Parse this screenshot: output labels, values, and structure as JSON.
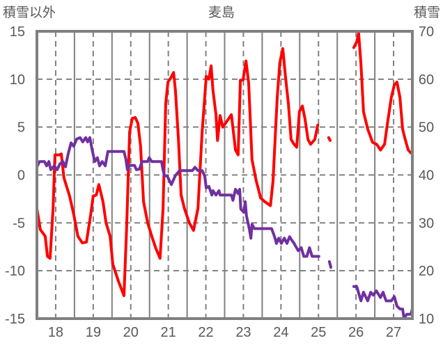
{
  "chart_data": {
    "type": "line",
    "title": "麦島",
    "ylabel_left": "積雪以外",
    "ylabel_right": "積雪",
    "xlabel": "",
    "xlim": [
      17.5,
      27.5
    ],
    "ylim_left": [
      -15,
      15
    ],
    "ylim_right": [
      10,
      70
    ],
    "x_ticks": [
      18,
      19,
      20,
      21,
      22,
      23,
      24,
      25,
      26,
      27
    ],
    "y_left_ticks": [
      15,
      10,
      5,
      0,
      -5,
      -10,
      -15
    ],
    "y_right_ticks": [
      70,
      60,
      50,
      40,
      30,
      20,
      10
    ],
    "grid": true,
    "colors": {
      "red_series": "#ff0000",
      "purple_series": "#7030a0",
      "grid": "#808080",
      "frame": "#808080"
    },
    "series": [
      {
        "name": "積雪以外",
        "axis": "left",
        "color": "#ff0000",
        "points": [
          [
            17.5,
            -3.5
          ],
          [
            17.59,
            -5.7
          ],
          [
            17.72,
            -6.4
          ],
          [
            17.78,
            -8.5
          ],
          [
            17.85,
            -8.7
          ],
          [
            17.93,
            -3.5
          ],
          [
            17.98,
            2.1
          ],
          [
            18.11,
            2.1
          ],
          [
            18.15,
            2.2
          ],
          [
            18.22,
            -0.3
          ],
          [
            18.37,
            -2.2
          ],
          [
            18.48,
            -4.1
          ],
          [
            18.59,
            -6.4
          ],
          [
            18.71,
            -7.1
          ],
          [
            18.82,
            -7.0
          ],
          [
            18.93,
            -4.2
          ],
          [
            19.0,
            -2.2
          ],
          [
            19.08,
            -2.1
          ],
          [
            19.15,
            -1.0
          ],
          [
            19.26,
            -2.8
          ],
          [
            19.34,
            -5.0
          ],
          [
            19.45,
            -6.4
          ],
          [
            19.52,
            -9.3
          ],
          [
            19.67,
            -11.1
          ],
          [
            19.82,
            -12.6
          ],
          [
            19.89,
            -5.5
          ],
          [
            19.97,
            4.5
          ],
          [
            20.04,
            5.9
          ],
          [
            20.12,
            6.0
          ],
          [
            20.19,
            5.4
          ],
          [
            20.26,
            3.0
          ],
          [
            20.34,
            -2.8
          ],
          [
            20.45,
            -5.0
          ],
          [
            20.56,
            -6.4
          ],
          [
            20.67,
            -7.7
          ],
          [
            20.78,
            -8.7
          ],
          [
            20.86,
            -3.5
          ],
          [
            20.93,
            7.4
          ],
          [
            20.99,
            9.7
          ],
          [
            21.06,
            10.1
          ],
          [
            21.14,
            10.7
          ],
          [
            21.19,
            8.8
          ],
          [
            21.27,
            3.7
          ],
          [
            21.34,
            -2.1
          ],
          [
            21.43,
            -3.5
          ],
          [
            21.56,
            -5.0
          ],
          [
            21.67,
            -5.8
          ],
          [
            21.79,
            -3.5
          ],
          [
            21.9,
            4.5
          ],
          [
            21.97,
            8.1
          ],
          [
            22.01,
            10.3
          ],
          [
            22.08,
            10.0
          ],
          [
            22.14,
            11.4
          ],
          [
            22.19,
            8.8
          ],
          [
            22.27,
            6.3
          ],
          [
            22.31,
            3.6
          ],
          [
            22.38,
            6.2
          ],
          [
            22.45,
            5.0
          ],
          [
            22.56,
            5.6
          ],
          [
            22.68,
            6.3
          ],
          [
            22.79,
            2.6
          ],
          [
            22.86,
            2.1
          ],
          [
            22.92,
            9.9
          ],
          [
            22.99,
            9.9
          ],
          [
            23.07,
            11.9
          ],
          [
            23.14,
            9.6
          ],
          [
            23.23,
            1.6
          ],
          [
            23.34,
            -0.6
          ],
          [
            23.46,
            -2.4
          ],
          [
            23.57,
            -2.8
          ],
          [
            23.72,
            -3.2
          ],
          [
            23.79,
            -0.6
          ],
          [
            23.9,
            8.1
          ],
          [
            23.97,
            11.7
          ],
          [
            24.05,
            13.2
          ],
          [
            24.12,
            10.3
          ],
          [
            24.2,
            7.4
          ],
          [
            24.27,
            3.7
          ],
          [
            24.35,
            3.2
          ],
          [
            24.42,
            2.9
          ],
          [
            24.49,
            6.6
          ],
          [
            24.57,
            7.2
          ],
          [
            24.64,
            5.9
          ],
          [
            24.72,
            3.7
          ],
          [
            24.79,
            3.2
          ],
          [
            24.9,
            3.7
          ],
          [
            24.98,
            5.2
          ],
          null,
          [
            25.27,
            3.9
          ],
          [
            25.31,
            3.6
          ],
          null,
          [
            25.94,
            13.3
          ],
          [
            26.02,
            13.9
          ],
          [
            26.07,
            14.8
          ],
          [
            26.13,
            11.6
          ],
          [
            26.2,
            6.6
          ],
          [
            26.31,
            4.8
          ],
          [
            26.44,
            3.4
          ],
          [
            26.55,
            3.2
          ],
          [
            26.65,
            2.6
          ],
          [
            26.76,
            3.2
          ],
          [
            26.83,
            5.2
          ],
          [
            26.94,
            8.1
          ],
          [
            27.02,
            9.4
          ],
          [
            27.09,
            9.7
          ],
          [
            27.17,
            8.1
          ],
          [
            27.24,
            4.8
          ],
          [
            27.31,
            3.7
          ],
          [
            27.39,
            2.6
          ],
          [
            27.46,
            2.3
          ]
        ]
      },
      {
        "name": "積雪",
        "axis": "right",
        "color": "#7030a0",
        "points": [
          [
            17.5,
            41.7
          ],
          [
            17.57,
            42.8
          ],
          [
            17.7,
            42.8
          ],
          [
            17.76,
            41.9
          ],
          [
            17.82,
            42.8
          ],
          [
            17.87,
            41.1
          ],
          [
            17.96,
            41.9
          ],
          [
            18.04,
            41.1
          ],
          [
            18.11,
            42.3
          ],
          [
            18.19,
            42.8
          ],
          [
            18.26,
            41.7
          ],
          [
            18.33,
            44.3
          ],
          [
            18.41,
            46.7
          ],
          [
            18.48,
            46.0
          ],
          [
            18.56,
            47.5
          ],
          [
            18.65,
            47.8
          ],
          [
            18.72,
            46.9
          ],
          [
            18.8,
            47.8
          ],
          [
            18.85,
            46.9
          ],
          [
            18.91,
            47.8
          ],
          [
            18.97,
            45.3
          ],
          [
            19.04,
            42.8
          ],
          [
            19.11,
            43.6
          ],
          [
            19.17,
            41.9
          ],
          [
            19.24,
            42.8
          ],
          [
            19.32,
            41.9
          ],
          [
            19.39,
            44.9
          ],
          [
            19.49,
            44.9
          ],
          [
            19.82,
            44.9
          ],
          [
            19.87,
            43.3
          ],
          [
            19.91,
            41.1
          ],
          [
            19.97,
            42.0
          ],
          [
            20.1,
            42.0
          ],
          [
            20.15,
            41.1
          ],
          [
            20.23,
            41.2
          ],
          [
            20.3,
            42.8
          ],
          [
            20.45,
            42.8
          ],
          [
            20.49,
            43.6
          ],
          [
            20.56,
            42.8
          ],
          [
            20.82,
            42.8
          ],
          [
            20.86,
            41.0
          ],
          [
            20.9,
            39.8
          ],
          [
            20.97,
            39.8
          ],
          [
            21.08,
            38.0
          ],
          [
            21.19,
            39.9
          ],
          [
            21.3,
            40.9
          ],
          [
            21.64,
            40.9
          ],
          [
            21.71,
            41.6
          ],
          [
            21.79,
            40.9
          ],
          [
            21.9,
            40.9
          ],
          [
            21.97,
            39.8
          ],
          [
            22.01,
            37.3
          ],
          [
            22.08,
            37.6
          ],
          [
            22.16,
            35.8
          ],
          [
            22.19,
            36.7
          ],
          [
            22.27,
            35.8
          ],
          [
            22.35,
            36.7
          ],
          [
            22.38,
            35.8
          ],
          [
            22.68,
            35.8
          ],
          [
            22.72,
            34.7
          ],
          [
            22.79,
            37.0
          ],
          [
            22.86,
            36.1
          ],
          [
            22.9,
            37.0
          ],
          [
            22.93,
            32.9
          ],
          [
            23.01,
            32.2
          ],
          [
            23.05,
            34.4
          ],
          [
            23.08,
            31.5
          ],
          [
            23.16,
            28.6
          ],
          [
            23.2,
            26.8
          ],
          [
            23.23,
            29.7
          ],
          [
            23.29,
            28.8
          ],
          [
            23.75,
            28.8
          ],
          [
            23.83,
            27.1
          ],
          [
            23.88,
            25.7
          ],
          [
            23.94,
            26.8
          ],
          [
            24.01,
            25.7
          ],
          [
            24.09,
            26.8
          ],
          [
            24.16,
            25.7
          ],
          [
            24.23,
            27.1
          ],
          [
            24.27,
            26.6
          ],
          [
            24.35,
            25.7
          ],
          [
            24.46,
            24.2
          ],
          [
            24.54,
            24.8
          ],
          [
            24.61,
            23.0
          ],
          [
            24.69,
            23.0
          ],
          [
            24.76,
            24.8
          ],
          [
            24.83,
            23.0
          ],
          [
            25.01,
            23.0
          ],
          null,
          [
            25.29,
            21.9
          ],
          [
            25.33,
            20.7
          ],
          null,
          [
            25.94,
            16.7
          ],
          [
            26.02,
            16.7
          ],
          [
            26.13,
            13.7
          ],
          [
            26.2,
            15.5
          ],
          [
            26.31,
            13.7
          ],
          [
            26.39,
            15.5
          ],
          [
            26.46,
            14.9
          ],
          [
            26.54,
            15.8
          ],
          [
            26.65,
            14.4
          ],
          [
            26.72,
            15.5
          ],
          [
            26.8,
            13.7
          ],
          [
            26.94,
            13.7
          ],
          [
            27.02,
            14.6
          ],
          [
            27.09,
            12.6
          ],
          [
            27.17,
            12.0
          ],
          [
            27.24,
            12.0
          ],
          [
            27.28,
            10.0
          ],
          [
            27.35,
            10.9
          ],
          [
            27.46,
            10.9
          ],
          [
            27.5,
            12.0
          ]
        ]
      }
    ]
  }
}
